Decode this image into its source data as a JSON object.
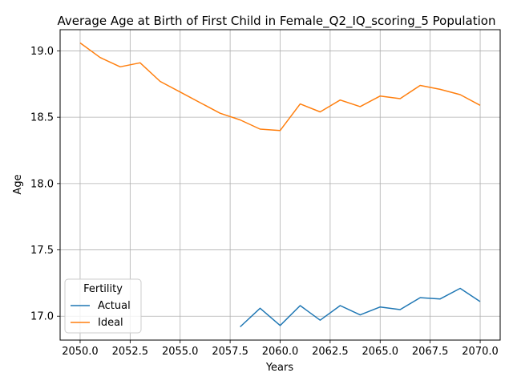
{
  "chart_data": {
    "type": "line",
    "title": "Average Age at Birth of First Child in Female_Q2_IQ_scoring_5 Population",
    "xlabel": "Years",
    "ylabel": "Age",
    "xlim": [
      2049,
      2071
    ],
    "ylim": [
      16.82,
      19.16
    ],
    "xticks": [
      2050,
      2052.5,
      2055,
      2057.5,
      2060,
      2062.5,
      2065,
      2067.5,
      2070
    ],
    "xtick_labels": [
      "2050.0",
      "2052.5",
      "2055.0",
      "2057.5",
      "2060.0",
      "2062.5",
      "2065.0",
      "2067.5",
      "2070.0"
    ],
    "yticks": [
      17.0,
      17.5,
      18.0,
      18.5,
      19.0
    ],
    "ytick_labels": [
      "17.0",
      "17.5",
      "18.0",
      "18.5",
      "19.0"
    ],
    "grid": true,
    "legend": {
      "title": "Fertility",
      "placement": "lower-left"
    },
    "series": [
      {
        "name": "Actual",
        "color": "#1f77b4",
        "x": [
          2058,
          2059,
          2060,
          2061,
          2062,
          2063,
          2064,
          2065,
          2066,
          2067,
          2068,
          2069,
          2070
        ],
        "y": [
          16.92,
          17.06,
          16.93,
          17.08,
          16.97,
          17.08,
          17.01,
          17.07,
          17.05,
          17.14,
          17.13,
          17.21,
          17.11
        ]
      },
      {
        "name": "Ideal",
        "color": "#ff7f0e",
        "x": [
          2050,
          2051,
          2052,
          2053,
          2054,
          2055,
          2056,
          2057,
          2058,
          2059,
          2060,
          2061,
          2062,
          2063,
          2064,
          2065,
          2066,
          2067,
          2068,
          2069,
          2070
        ],
        "y": [
          19.06,
          18.95,
          18.88,
          18.91,
          18.77,
          18.69,
          18.61,
          18.53,
          18.48,
          18.41,
          18.4,
          18.6,
          18.54,
          18.63,
          18.58,
          18.66,
          18.64,
          18.74,
          18.71,
          18.67,
          18.59
        ]
      }
    ]
  }
}
